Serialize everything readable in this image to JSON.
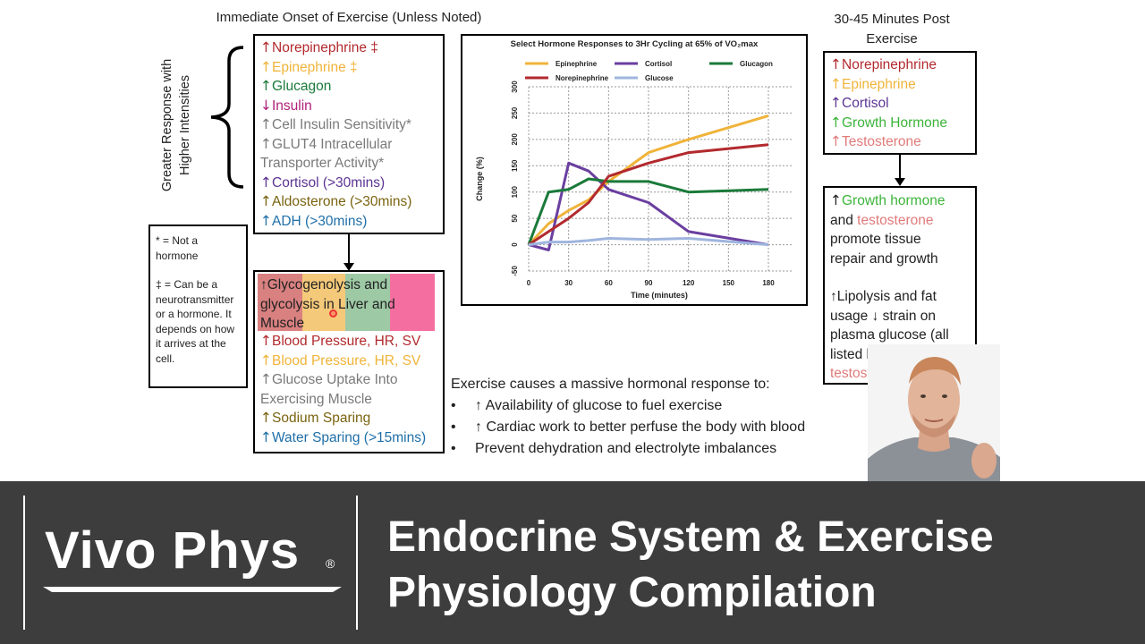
{
  "headings": {
    "left": "Immediate Onset of Exercise (Unless Noted)",
    "right_line1": "30-45 Minutes Post",
    "right_line2": "Exercise"
  },
  "side_label": {
    "line1": "Greater Response with",
    "line2": "Higher Intensities"
  },
  "immediate_list": [
    {
      "arrow": "↑",
      "text": "Norepinephrine ‡",
      "color": "#b22a2e"
    },
    {
      "arrow": "↑",
      "text": "Epinephrine ‡",
      "color": "#f0b43a"
    },
    {
      "arrow": "↑",
      "text": "Glucagon",
      "color": "#1a7a3a"
    },
    {
      "arrow": "↓",
      "text": "Insulin",
      "color": "#b0207a"
    },
    {
      "arrow": "↑",
      "text": "Cell Insulin Sensitivity*",
      "color": "#7a7a7a"
    },
    {
      "arrow": "↑",
      "text": "GLUT4 Intracellular",
      "color": "#7a7a7a"
    },
    {
      "arrow": "",
      "text": "Transporter Activity*",
      "color": "#7a7a7a"
    },
    {
      "arrow": "↑",
      "text": "Cortisol (>30mins)",
      "color": "#5c3493"
    },
    {
      "arrow": "↑",
      "text": "Aldosterone (>30mins)",
      "color": "#7a6410"
    },
    {
      "arrow": "↑",
      "text": "ADH (>30mins)",
      "color": "#1f6fa8"
    }
  ],
  "notes": {
    "star_line1": "* = Not a",
    "star_line2": "hormone",
    "dagger_line1": "‡ = Can be a",
    "dagger_line2": "neurotransmitter",
    "dagger_line3": "or a hormone. It",
    "dagger_line4": "depends on how",
    "dagger_line5": "it arrives at the",
    "dagger_line6": "cell."
  },
  "effects": {
    "glyco_line1": "↑Glycogenolysis and",
    "glyco_line2": "glycolysis in Liver and",
    "glyco_line3": "Muscle",
    "glyco_colors": [
      "#d98080",
      "#f5c97a",
      "#9dc9a5",
      "#f46fa0"
    ],
    "items": [
      {
        "arrow": "↑",
        "text": "Blood Pressure, HR, SV",
        "color": "#b22a2e"
      },
      {
        "arrow": "↑",
        "text": "Blood Pressure, HR, SV",
        "color": "#f0b43a"
      },
      {
        "arrow": "↑",
        "text": "Glucose Uptake Into",
        "color": "#7a7a7a"
      },
      {
        "arrow": "",
        "text": "Exercising Muscle",
        "color": "#7a7a7a"
      },
      {
        "arrow": "↑",
        "text": "Sodium Sparing",
        "color": "#7a6410"
      },
      {
        "arrow": "↑",
        "text": "Water Sparing (>15mins)",
        "color": "#1f6fa8"
      }
    ]
  },
  "post_list": [
    {
      "arrow": "↑",
      "text": "Norepinephrine",
      "color": "#b22a2e"
    },
    {
      "arrow": "↑",
      "text": "Epinephrine",
      "color": "#f0b43a"
    },
    {
      "arrow": "↑",
      "text": "Cortisol",
      "color": "#5c3493"
    },
    {
      "arrow": "↑",
      "text": "Growth Hormone",
      "color": "#3cb43a"
    },
    {
      "arrow": "↑",
      "text": "Testosterone",
      "color": "#e07a7a"
    }
  ],
  "post_effects": {
    "l1_arrow": "↑",
    "l1_gh": "Growth hormone",
    "l2_and": "and ",
    "l2_test": "testosterone",
    "l3": "promote tissue",
    "l4": "repair and growth",
    "l5": "↑Lipolysis and fat",
    "l6": "usage ↓ strain on",
    "l7": "plasma glucose (all",
    "l8": "listed but",
    "l9_test": "testosterone",
    "l9_end": ")"
  },
  "summary": {
    "intro": "Exercise causes a massive hormonal response to:",
    "bullets": [
      "↑ Availability of glucose to fuel exercise",
      "↑ Cardiac work to better perfuse the body with blood",
      "Prevent dehydration and electrolyte imbalances"
    ]
  },
  "branding": {
    "logo_text": "Vivo Phys",
    "logo_mark": "®",
    "title_line1": "Endocrine System & Exercise",
    "title_line2": "Physiology Compilation"
  },
  "chart_data": {
    "type": "line",
    "title": "Select Hormone Responses to 3Hr Cycling at 65% of VO₂max",
    "xlabel": "Time (minutes)",
    "ylabel": "Change (%)",
    "xlim": [
      0,
      180
    ],
    "ylim": [
      -50,
      300
    ],
    "xticks": [
      0,
      30,
      60,
      90,
      120,
      150,
      180
    ],
    "yticks": [
      -50,
      0,
      50,
      100,
      150,
      200,
      250,
      300
    ],
    "grid": true,
    "legend_position": "top",
    "series": [
      {
        "name": "Epinephrine",
        "color": "#f0b43a",
        "points": [
          [
            0,
            0
          ],
          [
            15,
            40
          ],
          [
            30,
            65
          ],
          [
            45,
            85
          ],
          [
            60,
            120
          ],
          [
            90,
            175
          ],
          [
            120,
            200
          ],
          [
            180,
            245
          ]
        ]
      },
      {
        "name": "Cortisol",
        "color": "#6a3fa0",
        "points": [
          [
            0,
            0
          ],
          [
            15,
            -10
          ],
          [
            30,
            155
          ],
          [
            45,
            140
          ],
          [
            60,
            105
          ],
          [
            90,
            80
          ],
          [
            120,
            25
          ],
          [
            180,
            0
          ]
        ]
      },
      {
        "name": "Glucagon",
        "color": "#1a7a3a",
        "points": [
          [
            0,
            0
          ],
          [
            15,
            100
          ],
          [
            30,
            105
          ],
          [
            45,
            125
          ],
          [
            60,
            120
          ],
          [
            90,
            120
          ],
          [
            120,
            100
          ],
          [
            180,
            105
          ]
        ]
      },
      {
        "name": "Norepinephrine",
        "color": "#b22a2e",
        "points": [
          [
            0,
            0
          ],
          [
            15,
            25
          ],
          [
            30,
            50
          ],
          [
            45,
            80
          ],
          [
            60,
            130
          ],
          [
            90,
            155
          ],
          [
            120,
            175
          ],
          [
            180,
            190
          ]
        ]
      },
      {
        "name": "Glucose",
        "color": "#9fb5de",
        "points": [
          [
            0,
            0
          ],
          [
            15,
            5
          ],
          [
            30,
            5
          ],
          [
            45,
            8
          ],
          [
            60,
            12
          ],
          [
            90,
            10
          ],
          [
            120,
            12
          ],
          [
            180,
            0
          ]
        ]
      }
    ]
  }
}
